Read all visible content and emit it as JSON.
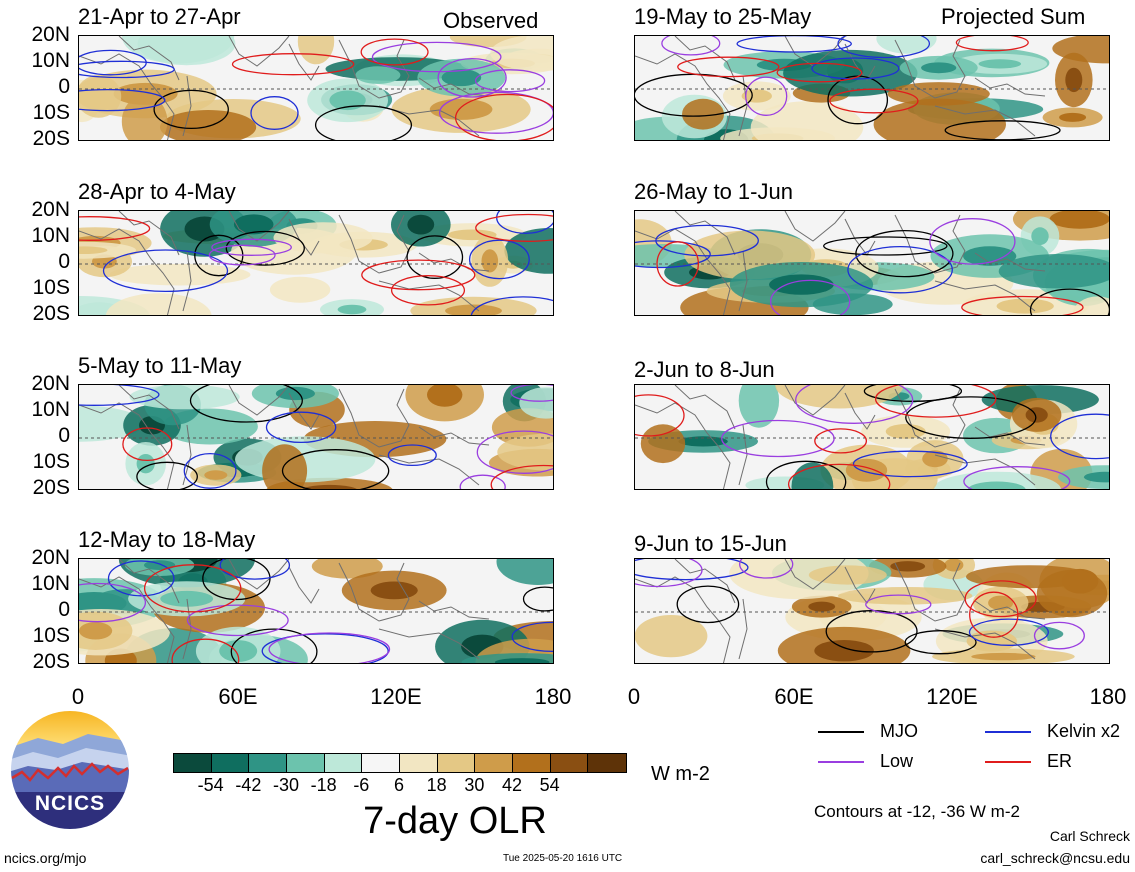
{
  "observed_label": "Observed",
  "projected_label": "Projected Sum",
  "panels_left": [
    {
      "title": "21-Apr to 27-Apr"
    },
    {
      "title": "28-Apr to 4-May"
    },
    {
      "title": "5-May to 11-May"
    },
    {
      "title": "12-May to 18-May"
    }
  ],
  "panels_right": [
    {
      "title": "19-May to 25-May"
    },
    {
      "title": "26-May to 1-Jun"
    },
    {
      "title": "2-Jun to 8-Jun"
    },
    {
      "title": "9-Jun to 15-Jun"
    }
  ],
  "lat_labels": [
    "20N",
    "10N",
    "0",
    "10S",
    "20S"
  ],
  "lon_labels": [
    "0",
    "60E",
    "120E",
    "180"
  ],
  "colorbar": {
    "colors": [
      "#0b4a3c",
      "#0f6e5f",
      "#2f9485",
      "#6cc3ad",
      "#bde8d9",
      "#f6f6f6",
      "#f2e6c2",
      "#e4c885",
      "#cf9c4a",
      "#b2701c",
      "#8a4f12",
      "#5e3308"
    ],
    "tick_labels": [
      "-54",
      "-42",
      "-30",
      "-18",
      "-6",
      "6",
      "18",
      "30",
      "42",
      "54"
    ],
    "units": "W m-2",
    "title": "7-day OLR"
  },
  "legend": {
    "items": [
      {
        "label": "MJO",
        "color": "#000000"
      },
      {
        "label": "Kelvin x2",
        "color": "#1f2fd6"
      },
      {
        "label": "Low",
        "color": "#9a3ee0"
      },
      {
        "label": "ER",
        "color": "#e01c1c"
      }
    ],
    "contours_note": "Contours at -12, -36 W m-2"
  },
  "logo_text": "NCICS",
  "footer": {
    "site": "ncics.org/mjo",
    "timestamp": "Tue 2025-05-20 1616 UTC",
    "author": "Carl Schreck",
    "email": "carl_schreck@ncsu.edu"
  }
}
